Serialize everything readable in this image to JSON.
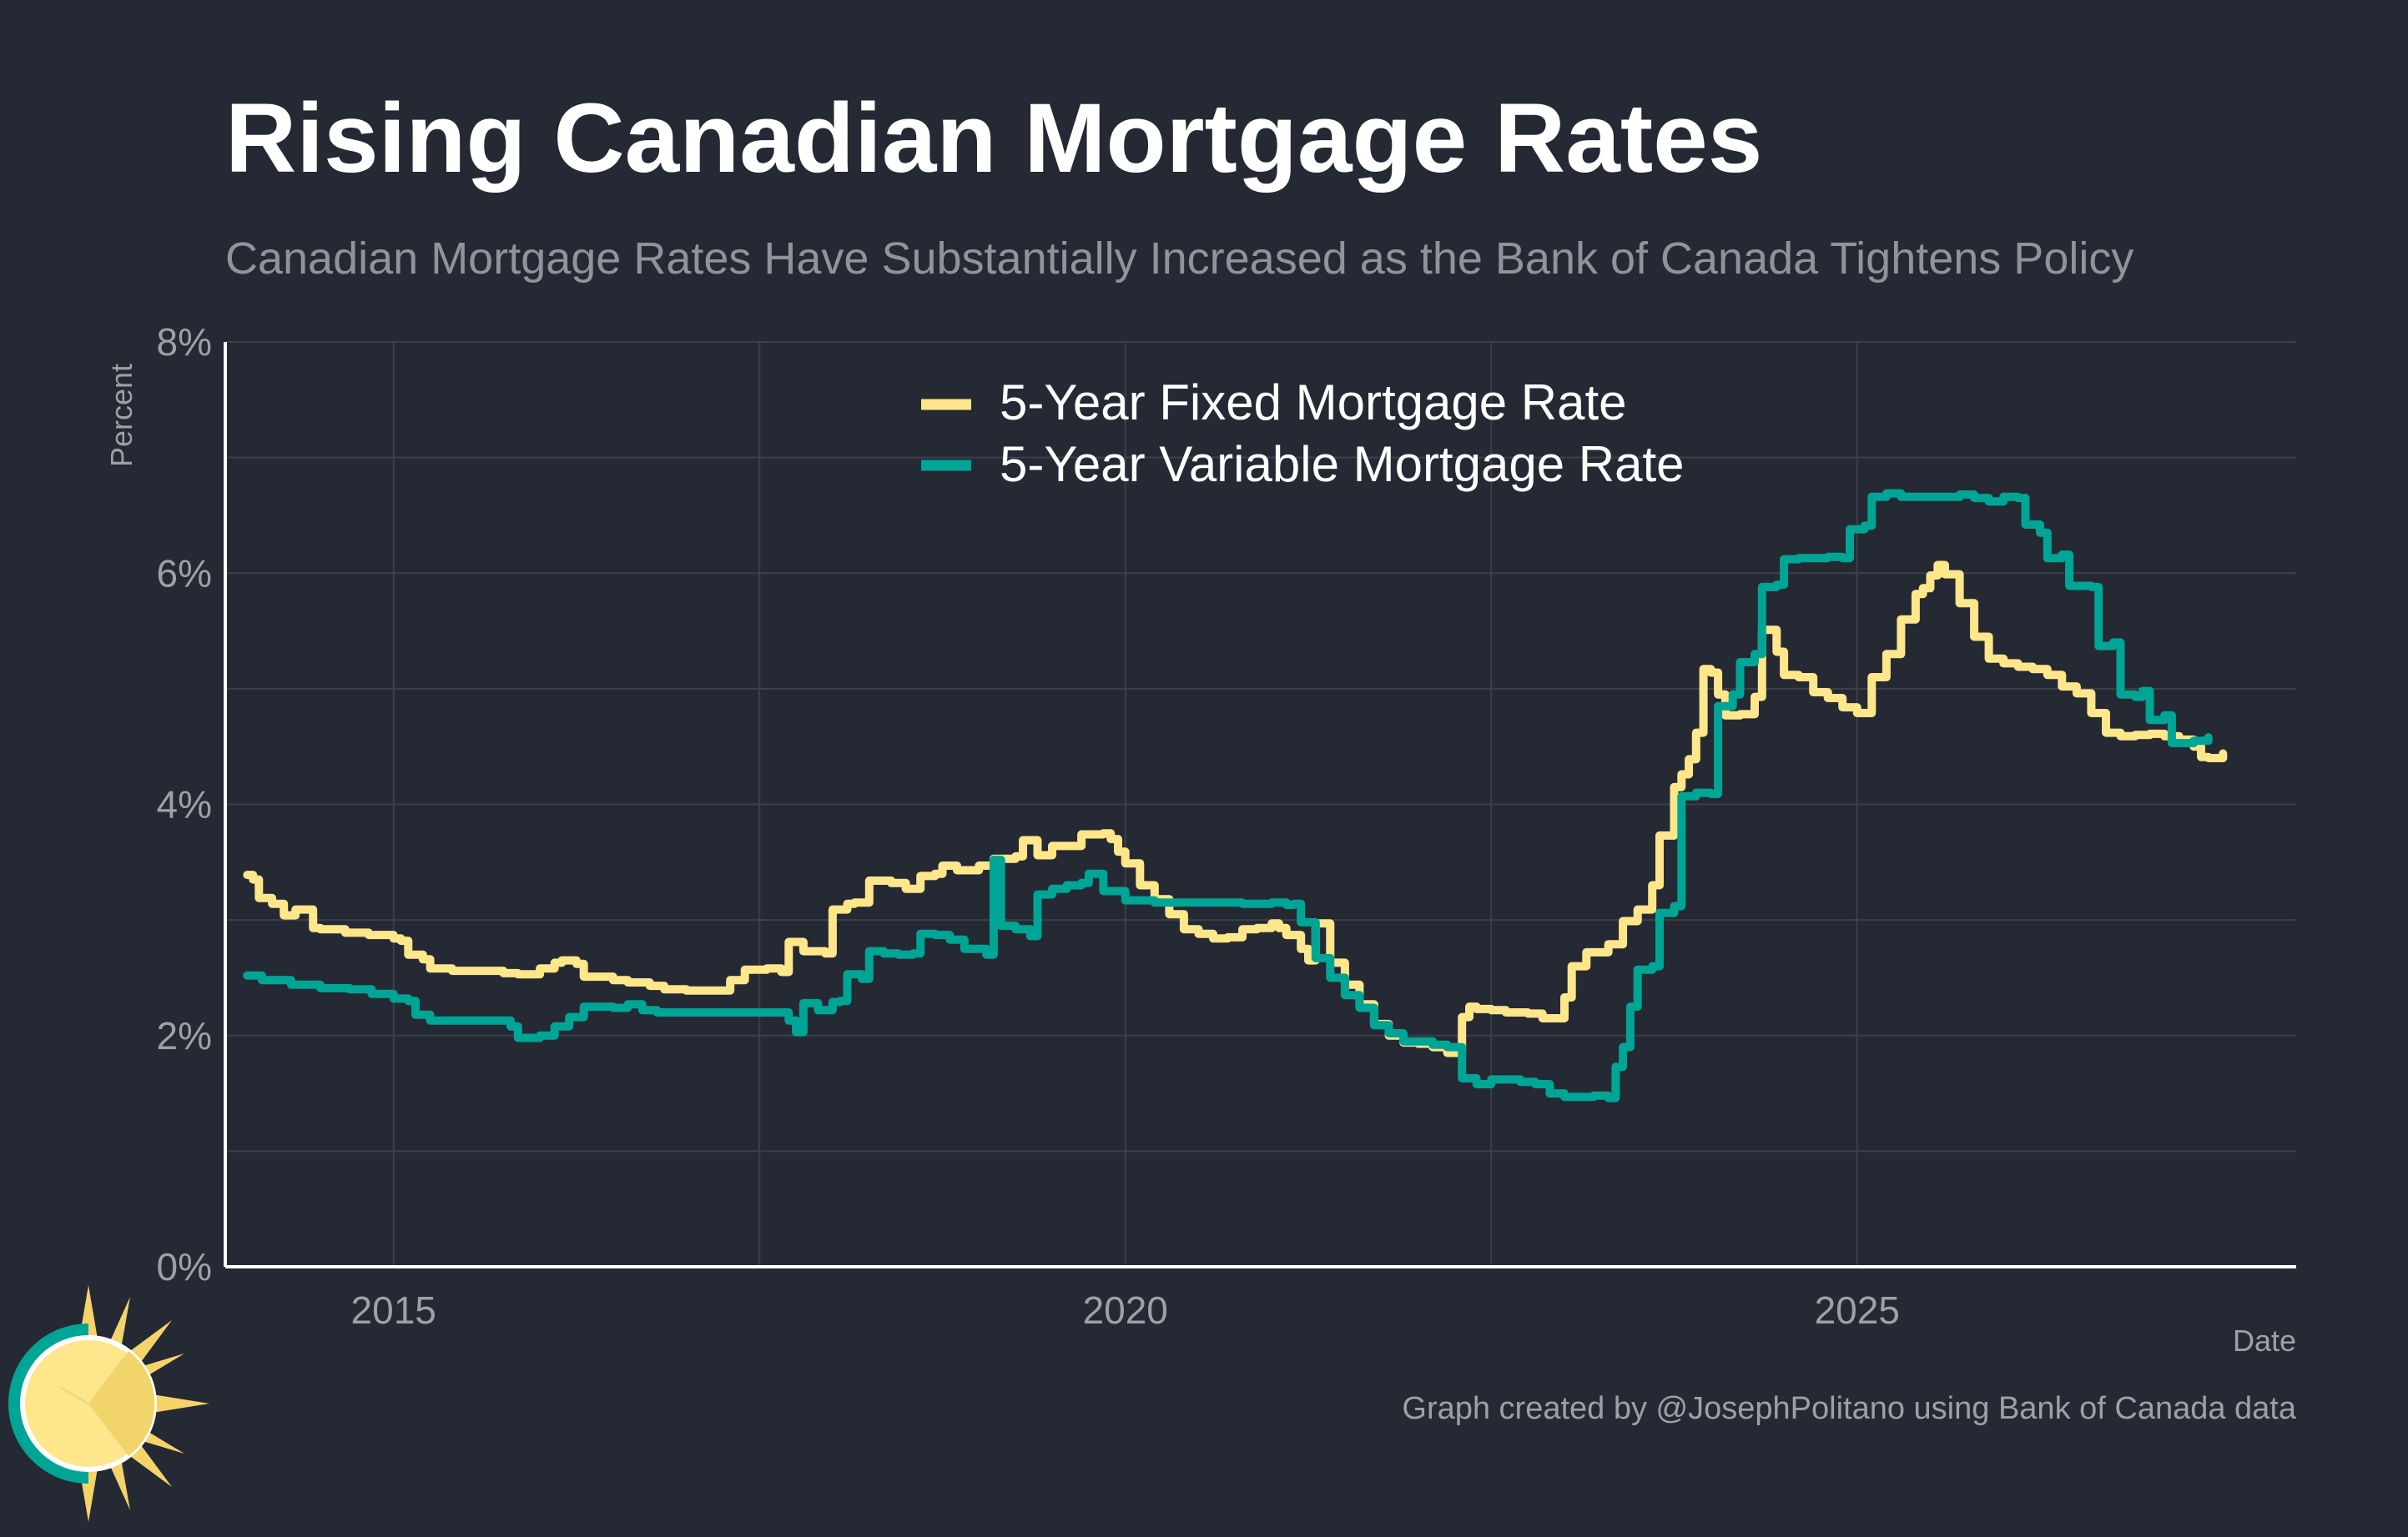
{
  "title": "Rising Canadian Mortgage Rates",
  "subtitle": "Canadian Mortgage Rates Have Substantially Increased as the Bank of Canada Tightens Policy",
  "caption": "Graph created by @JosephPolitano using Bank of Canada data",
  "logo_icon": "sun-logo-icon",
  "colors": {
    "background": "#252933",
    "fixed": "#fee68b",
    "variable": "#00a595",
    "grid": "#3c404a",
    "axis": "#ffffff",
    "text_muted": "#9da0a7"
  },
  "chart_data": {
    "type": "line",
    "title": "Rising Canadian Mortgage Rates",
    "xlabel": "Date",
    "ylabel": "Percent",
    "xlim": [
      2013.85,
      2026.0
    ],
    "ylim": [
      0,
      8
    ],
    "x_ticks": [
      2015,
      2020,
      2025
    ],
    "x_tick_labels": [
      "2015",
      "2020",
      "2025"
    ],
    "y_ticks": [
      0,
      2,
      4,
      6,
      8
    ],
    "y_tick_labels": [
      "0%",
      "2%",
      "4%",
      "6%",
      "8%"
    ],
    "grid": true,
    "legend_position": "top-center",
    "series": [
      {
        "name": "5-Year Fixed Mortgage Rate",
        "color": "#fee68b",
        "points": [
          [
            2014.0,
            3.39
          ],
          [
            2014.04,
            3.35
          ],
          [
            2014.08,
            3.19
          ],
          [
            2014.17,
            3.14
          ],
          [
            2014.25,
            3.04
          ],
          [
            2014.33,
            3.09
          ],
          [
            2014.42,
            3.09
          ],
          [
            2014.45,
            2.93
          ],
          [
            2014.5,
            2.92
          ],
          [
            2014.67,
            2.89
          ],
          [
            2014.83,
            2.87
          ],
          [
            2015.0,
            2.84
          ],
          [
            2015.05,
            2.82
          ],
          [
            2015.1,
            2.7
          ],
          [
            2015.2,
            2.66
          ],
          [
            2015.25,
            2.58
          ],
          [
            2015.4,
            2.56
          ],
          [
            2015.5,
            2.56
          ],
          [
            2015.75,
            2.54
          ],
          [
            2015.85,
            2.53
          ],
          [
            2016.0,
            2.58
          ],
          [
            2016.1,
            2.63
          ],
          [
            2016.15,
            2.65
          ],
          [
            2016.25,
            2.62
          ],
          [
            2016.3,
            2.51
          ],
          [
            2016.5,
            2.48
          ],
          [
            2016.6,
            2.46
          ],
          [
            2016.75,
            2.43
          ],
          [
            2016.85,
            2.4
          ],
          [
            2017.0,
            2.39
          ],
          [
            2017.2,
            2.39
          ],
          [
            2017.3,
            2.48
          ],
          [
            2017.4,
            2.57
          ],
          [
            2017.55,
            2.58
          ],
          [
            2017.65,
            2.55
          ],
          [
            2017.7,
            2.81
          ],
          [
            2017.8,
            2.73
          ],
          [
            2017.95,
            2.71
          ],
          [
            2018.0,
            3.09
          ],
          [
            2018.1,
            3.14
          ],
          [
            2018.15,
            3.15
          ],
          [
            2018.25,
            3.34
          ],
          [
            2018.4,
            3.32
          ],
          [
            2018.5,
            3.27
          ],
          [
            2018.6,
            3.38
          ],
          [
            2018.7,
            3.4
          ],
          [
            2018.75,
            3.47
          ],
          [
            2018.85,
            3.43
          ],
          [
            2019.0,
            3.47
          ],
          [
            2019.1,
            3.53
          ],
          [
            2019.25,
            3.55
          ],
          [
            2019.3,
            3.69
          ],
          [
            2019.4,
            3.56
          ],
          [
            2019.5,
            3.64
          ],
          [
            2019.7,
            3.74
          ],
          [
            2019.85,
            3.75
          ],
          [
            2019.9,
            3.7
          ],
          [
            2019.95,
            3.59
          ],
          [
            2020.0,
            3.49
          ],
          [
            2020.1,
            3.3
          ],
          [
            2020.2,
            3.18
          ],
          [
            2020.3,
            3.05
          ],
          [
            2020.4,
            2.92
          ],
          [
            2020.5,
            2.88
          ],
          [
            2020.6,
            2.84
          ],
          [
            2020.7,
            2.85
          ],
          [
            2020.8,
            2.92
          ],
          [
            2020.9,
            2.93
          ],
          [
            2021.0,
            2.97
          ],
          [
            2021.05,
            2.93
          ],
          [
            2021.1,
            2.87
          ],
          [
            2021.2,
            2.75
          ],
          [
            2021.25,
            2.65
          ],
          [
            2021.3,
            2.97
          ],
          [
            2021.4,
            2.63
          ],
          [
            2021.5,
            2.44
          ],
          [
            2021.6,
            2.27
          ],
          [
            2021.7,
            2.1
          ],
          [
            2021.8,
            2.0
          ],
          [
            2021.9,
            1.94
          ],
          [
            2022.0,
            1.93
          ],
          [
            2022.1,
            1.9
          ],
          [
            2022.2,
            1.85
          ],
          [
            2022.3,
            2.16
          ],
          [
            2022.35,
            2.25
          ],
          [
            2022.4,
            2.23
          ],
          [
            2022.5,
            2.22
          ],
          [
            2022.6,
            2.2
          ],
          [
            2022.75,
            2.19
          ],
          [
            2022.85,
            2.15
          ],
          [
            2023.0,
            2.33
          ],
          [
            2023.05,
            2.6
          ],
          [
            2023.15,
            2.72
          ],
          [
            2023.3,
            2.79
          ],
          [
            2023.4,
            2.99
          ],
          [
            2023.5,
            3.09
          ],
          [
            2023.6,
            3.3
          ],
          [
            2023.65,
            3.73
          ],
          [
            2023.75,
            4.15
          ],
          [
            2023.8,
            4.26
          ],
          [
            2023.85,
            4.39
          ],
          [
            2023.9,
            4.62
          ],
          [
            2023.95,
            5.17
          ],
          [
            2024.0,
            5.14
          ],
          [
            2024.05,
            4.95
          ],
          [
            2024.1,
            4.77
          ],
          [
            2024.2,
            4.78
          ],
          [
            2024.3,
            4.93
          ],
          [
            2024.35,
            5.51
          ],
          [
            2024.45,
            5.32
          ],
          [
            2024.5,
            5.12
          ],
          [
            2024.6,
            5.1
          ],
          [
            2024.7,
            4.97
          ],
          [
            2024.8,
            4.92
          ],
          [
            2024.9,
            4.84
          ],
          [
            2025.0,
            4.79
          ],
          [
            2025.1,
            5.1
          ],
          [
            2025.2,
            5.3
          ],
          [
            2025.3,
            5.6
          ],
          [
            2025.4,
            5.82
          ],
          [
            2025.45,
            5.87
          ],
          [
            2025.5,
            5.98
          ],
          [
            2025.55,
            6.07
          ],
          [
            2025.6,
            5.99
          ],
          [
            2025.7,
            5.74
          ],
          [
            2025.8,
            5.45
          ],
          [
            2025.9,
            5.26
          ],
          [
            2026.0,
            5.22
          ],
          [
            2026.1,
            5.19
          ],
          [
            2026.2,
            5.17
          ],
          [
            2026.3,
            5.12
          ],
          [
            2026.4,
            5.02
          ],
          [
            2026.5,
            4.96
          ],
          [
            2026.6,
            4.79
          ],
          [
            2026.7,
            4.62
          ],
          [
            2026.8,
            4.59
          ],
          [
            2026.9,
            4.6
          ],
          [
            2027.0,
            4.61
          ],
          [
            2027.1,
            4.59
          ],
          [
            2027.2,
            4.56
          ],
          [
            2027.3,
            4.5
          ],
          [
            2027.35,
            4.41
          ],
          [
            2027.4,
            4.4
          ],
          [
            2027.5,
            4.44
          ]
        ]
      },
      {
        "name": "5-Year Variable Mortgage Rate",
        "color": "#00a595",
        "points": [
          [
            2014.0,
            2.52
          ],
          [
            2014.1,
            2.48
          ],
          [
            2014.3,
            2.44
          ],
          [
            2014.5,
            2.41
          ],
          [
            2014.7,
            2.4
          ],
          [
            2014.85,
            2.36
          ],
          [
            2015.0,
            2.32
          ],
          [
            2015.1,
            2.3
          ],
          [
            2015.15,
            2.18
          ],
          [
            2015.25,
            2.13
          ],
          [
            2015.5,
            2.13
          ],
          [
            2015.7,
            2.13
          ],
          [
            2015.8,
            2.08
          ],
          [
            2015.85,
            1.98
          ],
          [
            2016.0,
            2.0
          ],
          [
            2016.1,
            2.08
          ],
          [
            2016.2,
            2.16
          ],
          [
            2016.3,
            2.25
          ],
          [
            2016.5,
            2.24
          ],
          [
            2016.6,
            2.27
          ],
          [
            2016.7,
            2.22
          ],
          [
            2016.8,
            2.2
          ],
          [
            2017.0,
            2.2
          ],
          [
            2017.2,
            2.2
          ],
          [
            2017.4,
            2.2
          ],
          [
            2017.6,
            2.2
          ],
          [
            2017.7,
            2.13
          ],
          [
            2017.75,
            2.03
          ],
          [
            2017.8,
            2.28
          ],
          [
            2017.9,
            2.22
          ],
          [
            2018.0,
            2.29
          ],
          [
            2018.05,
            2.3
          ],
          [
            2018.1,
            2.53
          ],
          [
            2018.2,
            2.49
          ],
          [
            2018.25,
            2.73
          ],
          [
            2018.35,
            2.71
          ],
          [
            2018.45,
            2.7
          ],
          [
            2018.55,
            2.71
          ],
          [
            2018.6,
            2.88
          ],
          [
            2018.7,
            2.87
          ],
          [
            2018.8,
            2.83
          ],
          [
            2018.9,
            2.75
          ],
          [
            2019.0,
            2.75
          ],
          [
            2019.05,
            2.7
          ],
          [
            2019.1,
            3.52
          ],
          [
            2019.15,
            2.95
          ],
          [
            2019.25,
            2.92
          ],
          [
            2019.35,
            2.86
          ],
          [
            2019.4,
            3.22
          ],
          [
            2019.5,
            3.27
          ],
          [
            2019.6,
            3.3
          ],
          [
            2019.7,
            3.32
          ],
          [
            2019.75,
            3.4
          ],
          [
            2019.85,
            3.25
          ],
          [
            2020.0,
            3.17
          ],
          [
            2020.2,
            3.15
          ],
          [
            2020.4,
            3.15
          ],
          [
            2020.6,
            3.15
          ],
          [
            2020.8,
            3.14
          ],
          [
            2021.0,
            3.15
          ],
          [
            2021.1,
            3.13
          ],
          [
            2021.15,
            3.14
          ],
          [
            2021.2,
            2.98
          ],
          [
            2021.3,
            2.67
          ],
          [
            2021.4,
            2.5
          ],
          [
            2021.5,
            2.35
          ],
          [
            2021.6,
            2.24
          ],
          [
            2021.7,
            2.09
          ],
          [
            2021.8,
            2.02
          ],
          [
            2021.9,
            1.95
          ],
          [
            2022.0,
            1.95
          ],
          [
            2022.1,
            1.92
          ],
          [
            2022.2,
            1.9
          ],
          [
            2022.3,
            1.63
          ],
          [
            2022.4,
            1.58
          ],
          [
            2022.5,
            1.62
          ],
          [
            2022.6,
            1.62
          ],
          [
            2022.7,
            1.6
          ],
          [
            2022.8,
            1.58
          ],
          [
            2022.9,
            1.5
          ],
          [
            2023.0,
            1.47
          ],
          [
            2023.1,
            1.47
          ],
          [
            2023.2,
            1.48
          ],
          [
            2023.3,
            1.46
          ],
          [
            2023.35,
            1.73
          ],
          [
            2023.4,
            1.9
          ],
          [
            2023.45,
            2.25
          ],
          [
            2023.5,
            2.57
          ],
          [
            2023.6,
            2.6
          ],
          [
            2023.65,
            3.06
          ],
          [
            2023.75,
            3.12
          ],
          [
            2023.8,
            4.07
          ],
          [
            2023.9,
            4.1
          ],
          [
            2024.0,
            4.09
          ],
          [
            2024.05,
            4.85
          ],
          [
            2024.15,
            4.95
          ],
          [
            2024.2,
            5.23
          ],
          [
            2024.3,
            5.3
          ],
          [
            2024.35,
            5.88
          ],
          [
            2024.45,
            5.9
          ],
          [
            2024.5,
            6.12
          ],
          [
            2024.6,
            6.13
          ],
          [
            2024.8,
            6.14
          ],
          [
            2024.9,
            6.13
          ],
          [
            2024.95,
            6.38
          ],
          [
            2025.05,
            6.41
          ],
          [
            2025.1,
            6.66
          ],
          [
            2025.2,
            6.69
          ],
          [
            2025.3,
            6.66
          ],
          [
            2025.5,
            6.66
          ],
          [
            2025.7,
            6.68
          ],
          [
            2025.8,
            6.65
          ],
          [
            2025.9,
            6.62
          ],
          [
            2026.0,
            6.66
          ],
          [
            2026.1,
            6.65
          ],
          [
            2026.15,
            6.42
          ],
          [
            2026.25,
            6.35
          ],
          [
            2026.3,
            6.13
          ],
          [
            2026.4,
            6.16
          ],
          [
            2026.45,
            5.89
          ],
          [
            2026.6,
            5.88
          ],
          [
            2026.65,
            5.37
          ],
          [
            2026.75,
            5.4
          ],
          [
            2026.8,
            4.95
          ],
          [
            2026.9,
            4.93
          ],
          [
            2026.95,
            4.98
          ],
          [
            2027.0,
            4.73
          ],
          [
            2027.1,
            4.77
          ],
          [
            2027.15,
            4.53
          ],
          [
            2027.3,
            4.55
          ],
          [
            2027.4,
            4.58
          ]
        ]
      }
    ]
  }
}
